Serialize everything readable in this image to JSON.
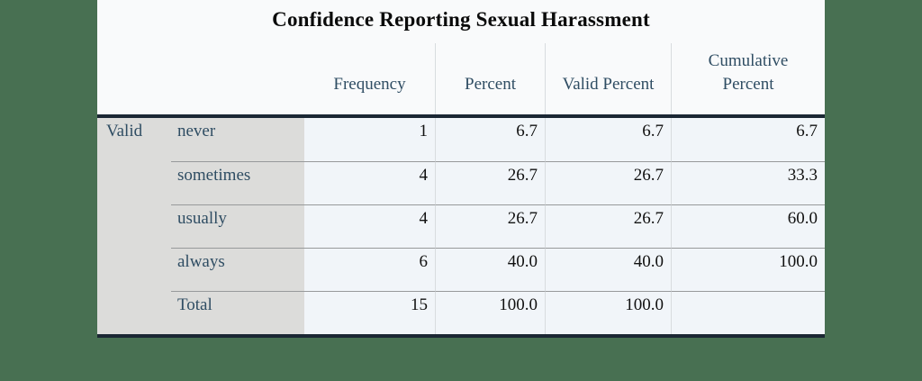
{
  "colors": {
    "page_background": "#487052",
    "card_background": "#f9fafb",
    "stub_background": "#dcdcda",
    "data_background": "#f1f5f9",
    "heavy_border": "#1b2734",
    "light_rule": "#d8dcdf",
    "row_rule": "#97999b",
    "label_text": "#2f4d63",
    "value_text": "#111111",
    "title_text": "#0b0b0b"
  },
  "chart_data": {
    "type": "table",
    "title": "Confidence Reporting Sexual Harassment",
    "row_group_label": "Valid",
    "columns": [
      "Frequency",
      "Percent",
      "Valid Percent",
      "Cumulative Percent"
    ],
    "rows": [
      {
        "label": "never",
        "frequency": "1",
        "percent": "6.7",
        "valid_percent": "6.7",
        "cumulative_percent": "6.7"
      },
      {
        "label": "sometimes",
        "frequency": "4",
        "percent": "26.7",
        "valid_percent": "26.7",
        "cumulative_percent": "33.3"
      },
      {
        "label": "usually",
        "frequency": "4",
        "percent": "26.7",
        "valid_percent": "26.7",
        "cumulative_percent": "60.0"
      },
      {
        "label": "always",
        "frequency": "6",
        "percent": "40.0",
        "valid_percent": "40.0",
        "cumulative_percent": "100.0"
      },
      {
        "label": "Total",
        "frequency": "15",
        "percent": "100.0",
        "valid_percent": "100.0",
        "cumulative_percent": ""
      }
    ]
  }
}
